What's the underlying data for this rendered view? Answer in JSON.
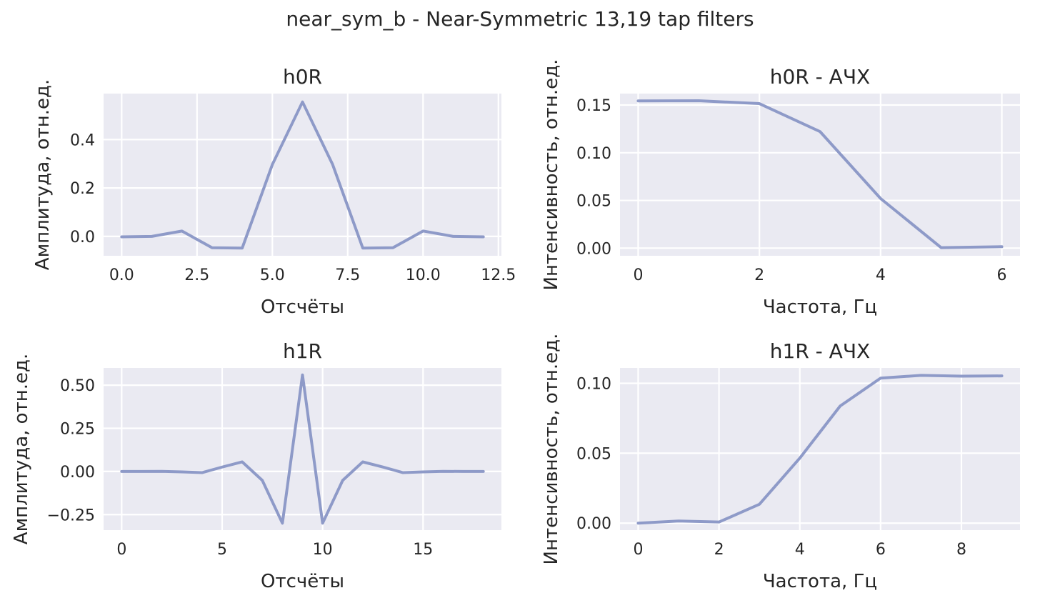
{
  "figure": {
    "suptitle": "near_sym_b - Near-Symmetric 13,19 tap filters"
  },
  "chart_data": [
    {
      "type": "line",
      "title": "h0R",
      "xlabel": "Отсчёты",
      "ylabel": "Амплитуда, отн.ед.",
      "x": [
        0,
        1,
        2,
        3,
        4,
        5,
        6,
        7,
        8,
        9,
        10,
        11,
        12
      ],
      "y": [
        -0.0018,
        0.0,
        0.0223,
        -0.0469,
        -0.0482,
        0.2969,
        0.5555,
        0.2969,
        -0.0482,
        -0.0469,
        0.0223,
        0.0,
        -0.0018
      ],
      "xlim": [
        -0.6,
        12.6
      ],
      "ylim": [
        -0.08,
        0.59
      ],
      "xticks": [
        0.0,
        2.5,
        5.0,
        7.5,
        10.0,
        12.5
      ],
      "xtick_labels": [
        "0.0",
        "2.5",
        "5.0",
        "7.5",
        "10.0",
        "12.5"
      ],
      "yticks": [
        0.0,
        0.2,
        0.4
      ],
      "ytick_labels": [
        "0.0",
        "0.2",
        "0.4"
      ],
      "grid": true,
      "color": "#8e9ac8"
    },
    {
      "type": "line",
      "title": "h0R - АЧХ",
      "xlabel": "Частота, Гц",
      "ylabel": "Интенсивность, отн.ед.",
      "x": [
        0,
        1,
        2,
        3,
        4,
        5,
        6
      ],
      "y": [
        0.1543,
        0.1545,
        0.1515,
        0.1222,
        0.052,
        0.0005,
        0.0015
      ],
      "xlim": [
        -0.3,
        6.3
      ],
      "ylim": [
        -0.008,
        0.162
      ],
      "xticks": [
        0,
        2,
        4,
        6
      ],
      "xtick_labels": [
        "0",
        "2",
        "4",
        "6"
      ],
      "yticks": [
        0.0,
        0.05,
        0.1,
        0.15
      ],
      "ytick_labels": [
        "0.00",
        "0.05",
        "0.10",
        "0.15"
      ],
      "grid": true,
      "color": "#8e9ac8"
    },
    {
      "type": "line",
      "title": "h1R",
      "xlabel": "Отсчёты",
      "ylabel": "Амплитуда, отн.ед.",
      "x": [
        0,
        1,
        2,
        3,
        4,
        5,
        6,
        7,
        8,
        9,
        10,
        11,
        12,
        13,
        14,
        15,
        16,
        17,
        18
      ],
      "y": [
        0.0,
        0.0,
        0.0007,
        -0.0024,
        -0.0068,
        0.0255,
        0.0556,
        -0.0518,
        -0.2998,
        0.5594,
        -0.2998,
        -0.0518,
        0.0556,
        0.0255,
        -0.0068,
        -0.0024,
        0.0007,
        0.0,
        0.0
      ],
      "xlim": [
        -0.9,
        18.9
      ],
      "ylim": [
        -0.34,
        0.6
      ],
      "xticks": [
        0,
        5,
        10,
        15
      ],
      "xtick_labels": [
        "0",
        "5",
        "10",
        "15"
      ],
      "yticks": [
        -0.25,
        0.0,
        0.25,
        0.5
      ],
      "ytick_labels": [
        "−0.25",
        "0.00",
        "0.25",
        "0.50"
      ],
      "grid": true,
      "color": "#8e9ac8"
    },
    {
      "type": "line",
      "title": "h1R - АЧХ",
      "xlabel": "Частота, Гц",
      "ylabel": "Интенсивность, отн.ед.",
      "x": [
        0,
        1,
        2,
        3,
        4,
        5,
        6,
        7,
        8,
        9
      ],
      "y": [
        0.0,
        0.0015,
        0.0008,
        0.0135,
        0.0465,
        0.0838,
        0.1037,
        0.1057,
        0.1051,
        0.1053
      ],
      "xlim": [
        -0.45,
        9.45
      ],
      "ylim": [
        -0.005,
        0.111
      ],
      "xticks": [
        0,
        2,
        4,
        6,
        8
      ],
      "xtick_labels": [
        "0",
        "2",
        "4",
        "6",
        "8"
      ],
      "yticks": [
        0.0,
        0.05,
        0.1
      ],
      "ytick_labels": [
        "0.00",
        "0.05",
        "0.10"
      ],
      "grid": true,
      "color": "#8e9ac8"
    }
  ]
}
